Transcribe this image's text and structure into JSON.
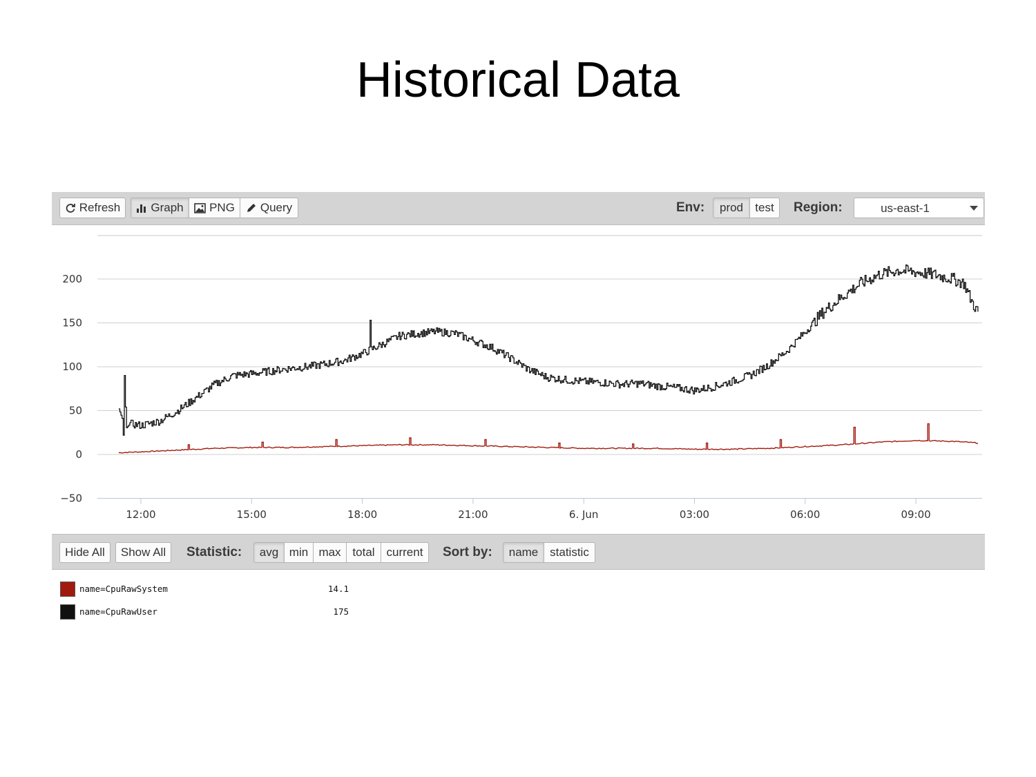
{
  "slide": {
    "title": "Historical Data"
  },
  "toolbar": {
    "refresh_label": "Refresh",
    "graph_label": "Graph",
    "png_label": "PNG",
    "query_label": "Query",
    "env_label": "Env:",
    "env_options": [
      "prod",
      "test"
    ],
    "env_selected": "prod",
    "region_label": "Region:",
    "region_value": "us-east-1"
  },
  "legend_toolbar": {
    "hide_all_label": "Hide All",
    "show_all_label": "Show All",
    "statistic_label": "Statistic:",
    "statistic_options": [
      "avg",
      "min",
      "max",
      "total",
      "current"
    ],
    "statistic_selected": "avg",
    "sort_label": "Sort by:",
    "sort_options": [
      "name",
      "statistic"
    ],
    "sort_selected": "name"
  },
  "legend": [
    {
      "name": "name=CpuRawSystem",
      "value": "14.1",
      "color": "#a11a0e"
    },
    {
      "name": "name=CpuRawUser",
      "value": "175",
      "color": "#111111"
    }
  ],
  "chart_data": {
    "type": "line",
    "x_tick_labels": [
      "12:00",
      "15:00",
      "18:00",
      "21:00",
      "6. Jun",
      "03:00",
      "06:00",
      "09:00"
    ],
    "x_unit": "hours since 12:00 (5 Jun)",
    "x_ticks": [
      0,
      3,
      6,
      9,
      12,
      15,
      18,
      21
    ],
    "xlim": [
      -1.2,
      22.75
    ],
    "y_ticks": [
      -50,
      0,
      50,
      100,
      150,
      200
    ],
    "ylim": [
      -50,
      250
    ],
    "grid": true,
    "series": [
      {
        "name": "name=CpuRawSystem",
        "color": "#a11a0e",
        "x": [
          -0.6,
          0,
          1,
          2,
          3,
          4,
          5,
          6,
          7,
          8,
          9,
          10,
          11,
          12,
          13,
          14,
          15,
          16,
          17,
          18,
          19,
          20,
          21,
          22,
          22.7
        ],
        "y": [
          2,
          3,
          5,
          7,
          8,
          8,
          9,
          10,
          11,
          11,
          10,
          9,
          8,
          7,
          7,
          7,
          6,
          6,
          7,
          9,
          11,
          14,
          16,
          15,
          13
        ],
        "spikes": [
          {
            "x": 1.3,
            "y": 11
          },
          {
            "x": 3.3,
            "y": 14
          },
          {
            "x": 5.3,
            "y": 17
          },
          {
            "x": 7.3,
            "y": 19
          },
          {
            "x": 9.3,
            "y": 17
          },
          {
            "x": 11.3,
            "y": 13
          },
          {
            "x": 13.3,
            "y": 12
          },
          {
            "x": 15.3,
            "y": 13
          },
          {
            "x": 17.3,
            "y": 17
          },
          {
            "x": 19.3,
            "y": 31
          },
          {
            "x": 21.3,
            "y": 35
          }
        ]
      },
      {
        "name": "name=CpuRawUser",
        "color": "#111111",
        "x": [
          -0.6,
          -0.5,
          -0.48,
          -0.45,
          -0.4,
          -0.3,
          0,
          0.5,
          1,
          1.5,
          2,
          2.5,
          3,
          3.5,
          4,
          4.5,
          5,
          5.5,
          6,
          6.5,
          7,
          7.5,
          8,
          8.5,
          9,
          9.5,
          10,
          10.5,
          11,
          11.5,
          12,
          12.5,
          13,
          13.5,
          14,
          14.5,
          15,
          15.5,
          16,
          16.5,
          17,
          17.5,
          18,
          18.5,
          19,
          19.5,
          20,
          20.5,
          21,
          21.5,
          22,
          22.3,
          22.5,
          22.7
        ],
        "y": [
          52,
          40,
          22,
          90,
          30,
          35,
          33,
          38,
          50,
          65,
          80,
          90,
          92,
          95,
          98,
          100,
          103,
          107,
          115,
          125,
          135,
          138,
          140,
          138,
          130,
          122,
          110,
          97,
          88,
          85,
          83,
          82,
          80,
          81,
          78,
          76,
          73,
          77,
          83,
          90,
          102,
          118,
          140,
          163,
          180,
          195,
          205,
          210,
          208,
          205,
          200,
          195,
          175,
          160
        ],
        "peak": {
          "x": 6.2,
          "y": 153
        }
      }
    ]
  }
}
